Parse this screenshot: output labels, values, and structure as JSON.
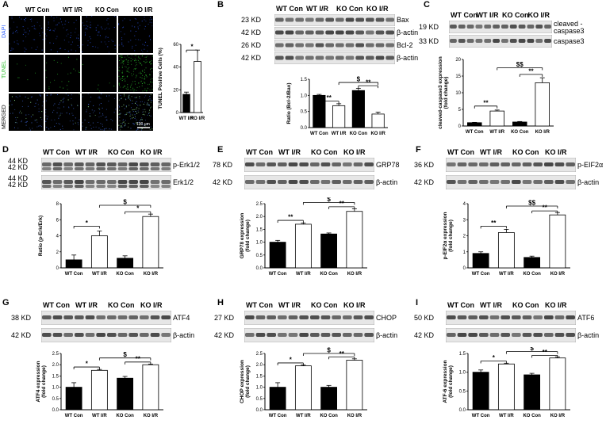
{
  "panels": {
    "A": {
      "letter": "A",
      "columns": [
        "WT Con",
        "WT I/R",
        "KO Con",
        "KO I/R"
      ],
      "rows": [
        "DAPI",
        "TUNEL",
        "MERGED"
      ],
      "row_colors": [
        "#3060ff",
        "#30c030",
        "#ffffff"
      ],
      "scale_bar": "100 μm"
    },
    "B": {
      "letter": "B",
      "columns": [
        "WT Con",
        "WT I/R",
        "KO Con",
        "KO I/R"
      ],
      "blots": [
        {
          "kd": "23 KD",
          "name": "Bax"
        },
        {
          "kd": "42 KD",
          "name": "β-actin"
        },
        {
          "kd": "26 KD",
          "name": "Bcl-2"
        },
        {
          "kd": "42 KD",
          "name": "β-actin"
        }
      ]
    },
    "C": {
      "letter": "C",
      "columns": [
        "WT Con",
        "WT I/R",
        "KO Con",
        "KO I/R"
      ],
      "blots": [
        {
          "kd": "19 KD",
          "name": "cleaved -caspase3"
        },
        {
          "kd": "33 KD",
          "name": "caspase3"
        }
      ]
    },
    "D": {
      "letter": "D",
      "columns": [
        "WT Con",
        "WT I/R",
        "KO Con",
        "KO I/R"
      ],
      "blots": [
        {
          "kd": "44 KD\n42 KD",
          "name": "p-Erk1/2"
        },
        {
          "kd": "44 KD\n42 KD",
          "name": "Erk1/2"
        }
      ]
    },
    "E": {
      "letter": "E",
      "columns": [
        "WT Con",
        "WT I/R",
        "KO Con",
        "KO I/R"
      ],
      "blots": [
        {
          "kd": "78 KD",
          "name": "GRP78"
        },
        {
          "kd": "42 KD",
          "name": "β-actin"
        }
      ]
    },
    "F": {
      "letter": "F",
      "columns": [
        "WT Con",
        "WT I/R",
        "KO Con",
        "KO I/R"
      ],
      "blots": [
        {
          "kd": "36 KD",
          "name": "p-EIF2α"
        },
        {
          "kd": "42 KD",
          "name": "β-actin"
        }
      ]
    },
    "G": {
      "letter": "G",
      "columns": [
        "WT Con",
        "WT I/R",
        "KO Con",
        "KO I/R"
      ],
      "blots": [
        {
          "kd": "38 KD",
          "name": "ATF4"
        },
        {
          "kd": "42 KD",
          "name": "β-actin"
        }
      ]
    },
    "H": {
      "letter": "H",
      "columns": [
        "WT Con",
        "WT I/R",
        "KO Con",
        "KO I/R"
      ],
      "blots": [
        {
          "kd": "27 KD",
          "name": "CHOP"
        },
        {
          "kd": "42 KD",
          "name": "β-actin"
        }
      ]
    },
    "I": {
      "letter": "I",
      "columns": [
        "WT Con",
        "WT I/R",
        "KO Con",
        "KO I/R"
      ],
      "blots": [
        {
          "kd": "50 KD",
          "name": "ATF6"
        },
        {
          "kd": "42 KD",
          "name": "β-actin"
        }
      ]
    }
  },
  "chart_data": [
    {
      "id": "A",
      "type": "bar",
      "categories": [
        "WT I/R",
        "KO I/R"
      ],
      "values": [
        16,
        45
      ],
      "errors": [
        2,
        10
      ],
      "ylabel": "TUNEL Positive Cells (%)",
      "ylim": [
        0,
        60
      ],
      "yticks": [
        0,
        20,
        40,
        60
      ],
      "fills": [
        "#000000",
        "#ffffff"
      ],
      "sig": [
        {
          "from": 0,
          "to": 1,
          "label": "*",
          "y": 55
        }
      ]
    },
    {
      "id": "B",
      "type": "bar",
      "categories": [
        "WT Con",
        "WT I/R",
        "KO Con",
        "KO I/R"
      ],
      "values": [
        1.0,
        0.68,
        1.15,
        0.42
      ],
      "errors": [
        0.03,
        0.06,
        0.07,
        0.06
      ],
      "ylabel": "Ratio (Bcl-2/Bax)",
      "ylim": [
        0,
        1.5
      ],
      "yticks": [
        0.0,
        0.5,
        1.0,
        1.5
      ],
      "fills": [
        "#000000",
        "#ffffff",
        "#000000",
        "#ffffff"
      ],
      "sig": [
        {
          "from": 0,
          "to": 1,
          "label": "**",
          "y": 0.82
        },
        {
          "from": 2,
          "to": 3,
          "label": "**",
          "y": 1.3
        },
        {
          "from": 1,
          "to": 3,
          "label": "$",
          "y": 1.4
        }
      ]
    },
    {
      "id": "C",
      "type": "bar",
      "categories": [
        "WT Con",
        "WT I/R",
        "KO Con",
        "KO I/R"
      ],
      "values": [
        1.0,
        4.5,
        1.2,
        13.0
      ],
      "errors": [
        0.1,
        0.3,
        0.15,
        1.5
      ],
      "ylabel": "cleaved-caspase3 expression (fold change)",
      "ylim": [
        0,
        20
      ],
      "yticks": [
        0,
        5,
        10,
        15,
        20
      ],
      "fills": [
        "#000000",
        "#ffffff",
        "#000000",
        "#ffffff"
      ],
      "sig": [
        {
          "from": 0,
          "to": 1,
          "label": "**",
          "y": 6
        },
        {
          "from": 2,
          "to": 3,
          "label": "**",
          "y": 15.5
        },
        {
          "from": 1,
          "to": 3,
          "label": "$$",
          "y": 17.5
        }
      ]
    },
    {
      "id": "D",
      "type": "bar",
      "categories": [
        "WT Con",
        "WT I/R",
        "KO Con",
        "KO I/R"
      ],
      "values": [
        1.0,
        4.0,
        1.2,
        6.4
      ],
      "errors": [
        0.6,
        0.6,
        0.3,
        0.3
      ],
      "ylabel": "Ratio (p-Erk/Erk)",
      "ylim": [
        0,
        8
      ],
      "yticks": [
        0,
        2,
        4,
        6,
        8
      ],
      "fills": [
        "#000000",
        "#ffffff",
        "#000000",
        "#ffffff"
      ],
      "sig": [
        {
          "from": 0,
          "to": 1,
          "label": "*",
          "y": 5.2
        },
        {
          "from": 2,
          "to": 3,
          "label": "*",
          "y": 7.0
        },
        {
          "from": 1,
          "to": 3,
          "label": "$",
          "y": 7.8
        }
      ]
    },
    {
      "id": "E",
      "type": "bar",
      "categories": [
        "WT Con",
        "WT I/R",
        "KO Con",
        "KO I/R"
      ],
      "values": [
        1.0,
        1.7,
        1.32,
        2.2
      ],
      "errors": [
        0.07,
        0.05,
        0.04,
        0.1
      ],
      "ylabel": "GRP78 expression (fold change)",
      "ylim": [
        0,
        2.5
      ],
      "yticks": [
        0.0,
        0.5,
        1.0,
        1.5,
        2.0,
        2.5
      ],
      "fills": [
        "#000000",
        "#ffffff",
        "#000000",
        "#ffffff"
      ],
      "sig": [
        {
          "from": 0,
          "to": 1,
          "label": "**",
          "y": 1.85
        },
        {
          "from": 2,
          "to": 3,
          "label": "**",
          "y": 2.38
        },
        {
          "from": 1,
          "to": 3,
          "label": "$",
          "y": 2.55
        }
      ]
    },
    {
      "id": "F",
      "type": "bar",
      "categories": [
        "WT Con",
        "WT I/R",
        "KO Con",
        "KO I/R"
      ],
      "values": [
        0.9,
        2.2,
        0.65,
        3.3
      ],
      "errors": [
        0.1,
        0.2,
        0.08,
        0.15
      ],
      "ylabel": "p-EIF2α expression (fold change)",
      "ylim": [
        0,
        4
      ],
      "yticks": [
        0,
        1,
        2,
        3,
        4
      ],
      "fills": [
        "#000000",
        "#ffffff",
        "#000000",
        "#ffffff"
      ],
      "sig": [
        {
          "from": 0,
          "to": 1,
          "label": "**",
          "y": 2.6
        },
        {
          "from": 2,
          "to": 3,
          "label": "**",
          "y": 3.55
        },
        {
          "from": 1,
          "to": 3,
          "label": "$$",
          "y": 3.85
        }
      ]
    },
    {
      "id": "G",
      "type": "bar",
      "categories": [
        "WT Con",
        "WT I/R",
        "KO Con",
        "KO I/R"
      ],
      "values": [
        1.0,
        1.75,
        1.4,
        2.0
      ],
      "errors": [
        0.2,
        0.04,
        0.08,
        0.03
      ],
      "ylabel": "ATF4 expression (fold change)",
      "ylim": [
        0,
        2.5
      ],
      "yticks": [
        0.0,
        0.5,
        1.0,
        1.5,
        2.0,
        2.5
      ],
      "fills": [
        "#000000",
        "#ffffff",
        "#000000",
        "#ffffff"
      ],
      "sig": [
        {
          "from": 0,
          "to": 1,
          "label": "*",
          "y": 1.9
        },
        {
          "from": 2,
          "to": 3,
          "label": "**",
          "y": 2.12
        },
        {
          "from": 1,
          "to": 3,
          "label": "$",
          "y": 2.3
        }
      ]
    },
    {
      "id": "H",
      "type": "bar",
      "categories": [
        "WT Con",
        "WT I/R",
        "KO Con",
        "KO I/R"
      ],
      "values": [
        1.0,
        1.95,
        1.0,
        2.2
      ],
      "errors": [
        0.2,
        0.04,
        0.08,
        0.06
      ],
      "ylabel": "CHOP expression (fold change)",
      "ylim": [
        0,
        2.5
      ],
      "yticks": [
        0.0,
        0.5,
        1.0,
        1.5,
        2.0,
        2.5
      ],
      "fills": [
        "#000000",
        "#ffffff",
        "#000000",
        "#ffffff"
      ],
      "sig": [
        {
          "from": 0,
          "to": 1,
          "label": "*",
          "y": 2.08
        },
        {
          "from": 2,
          "to": 3,
          "label": "**",
          "y": 2.35
        },
        {
          "from": 1,
          "to": 3,
          "label": "$",
          "y": 2.5
        }
      ]
    },
    {
      "id": "I",
      "type": "bar",
      "categories": [
        "WT Con",
        "WT I/R",
        "KO Con",
        "KO I/R"
      ],
      "values": [
        1.0,
        1.22,
        0.93,
        1.38
      ],
      "errors": [
        0.06,
        0.02,
        0.04,
        0.03
      ],
      "ylabel": "ATF-6 expression (fold change)",
      "ylim": [
        0,
        1.5
      ],
      "yticks": [
        0.0,
        0.5,
        1.0,
        1.5
      ],
      "fills": [
        "#000000",
        "#ffffff",
        "#000000",
        "#ffffff"
      ],
      "sig": [
        {
          "from": 0,
          "to": 1,
          "label": "*",
          "y": 1.3
        },
        {
          "from": 2,
          "to": 3,
          "label": "**",
          "y": 1.45
        },
        {
          "from": 1,
          "to": 3,
          "label": "$",
          "y": 1.55
        }
      ]
    }
  ]
}
